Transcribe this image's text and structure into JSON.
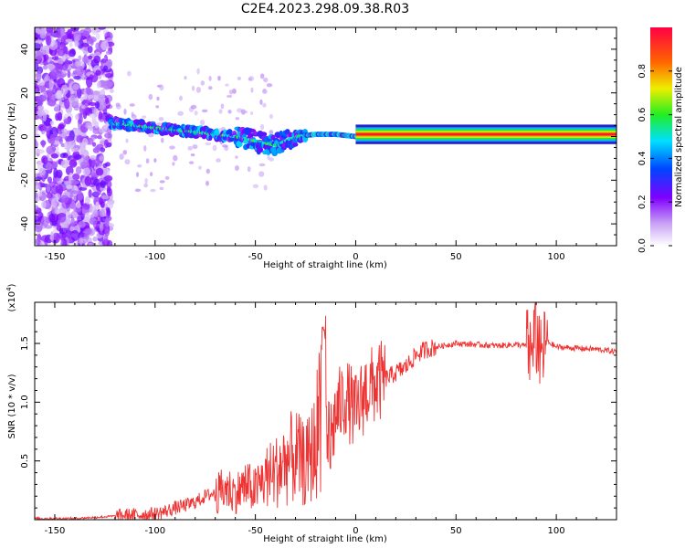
{
  "title": "C2E4.2023.298.09.38.R03",
  "chart_data": [
    {
      "type": "heatmap",
      "ylabel": "Frequency (Hz)",
      "xlabel": "Height of straight line (km)",
      "xlim": [
        -160,
        130
      ],
      "ylim": [
        -50,
        50
      ],
      "xticks": [
        "-150",
        "-100",
        "-50",
        "0",
        "50",
        "100"
      ],
      "yticks": [
        "-40",
        "-20",
        "0",
        "20",
        "40"
      ],
      "xtick_values": [
        -150,
        -100,
        -50,
        0,
        50,
        100
      ],
      "ytick_values": [
        -40,
        -20,
        0,
        20,
        40
      ],
      "colorbar": {
        "label": "Normalized spectral amplitude",
        "range": [
          0,
          1
        ],
        "ticks": [
          "0.0",
          "0.2",
          "0.4",
          "0.6",
          "0.8"
        ],
        "tick_values": [
          0.0,
          0.2,
          0.4,
          0.6,
          0.8
        ]
      },
      "trace": {
        "x": [
          -120,
          -100,
          -80,
          -60,
          -40,
          -30,
          -20,
          -10,
          0,
          10,
          30,
          60,
          90,
          130
        ],
        "y": [
          6,
          4,
          2,
          0,
          -4,
          0,
          1,
          1,
          0,
          1,
          1,
          1,
          1,
          1
        ]
      }
    },
    {
      "type": "line",
      "ylabel": "SNR (10 * v/v)",
      "xlabel": "Height of straight line (km)",
      "scale_label": "(x10",
      "scale_exp": "4",
      "scale_close": ")",
      "xlim": [
        -160,
        130
      ],
      "ylim": [
        0,
        1.85
      ],
      "xticks": [
        "-150",
        "-100",
        "-50",
        "0",
        "50",
        "100"
      ],
      "yticks": [
        "0.5",
        "1.0",
        "1.5"
      ],
      "xtick_values": [
        -150,
        -100,
        -50,
        0,
        50,
        100
      ],
      "ytick_values": [
        0.5,
        1.0,
        1.5
      ],
      "line_color": "#ee3333",
      "series": [
        {
          "x": [
            -160,
            -150,
            -140,
            -130,
            -120,
            -110,
            -100,
            -95,
            -90,
            -85,
            -80,
            -75,
            -70,
            -65,
            -60,
            -55,
            -50,
            -45,
            -40,
            -35,
            -30,
            -25,
            -20,
            -17,
            -15,
            -12,
            -10,
            -5,
            0,
            5,
            10,
            15,
            20,
            25,
            30,
            35,
            40,
            50,
            60,
            70,
            80,
            85,
            88,
            90,
            92,
            95,
            100,
            110,
            120,
            130
          ],
          "y": [
            0.01,
            0.01,
            0.01,
            0.02,
            0.03,
            0.04,
            0.05,
            0.07,
            0.1,
            0.12,
            0.15,
            0.2,
            0.23,
            0.3,
            0.25,
            0.32,
            0.28,
            0.4,
            0.45,
            0.55,
            0.6,
            0.5,
            0.7,
            1.25,
            0.6,
            0.7,
            0.9,
            1.05,
            0.9,
            1.1,
            1.15,
            1.2,
            1.25,
            1.3,
            1.4,
            1.45,
            1.47,
            1.5,
            1.49,
            1.48,
            1.49,
            1.48,
            1.4,
            1.55,
            1.35,
            1.52,
            1.47,
            1.46,
            1.45,
            1.43
          ]
        }
      ]
    }
  ]
}
